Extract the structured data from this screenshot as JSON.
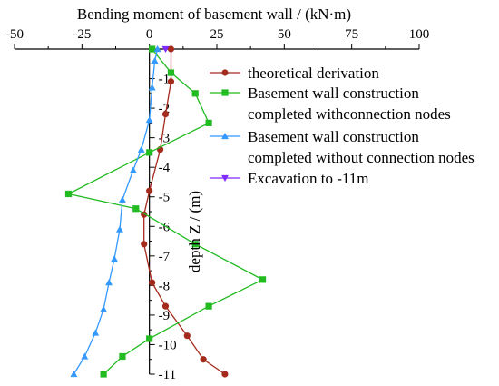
{
  "chart_data": {
    "type": "line",
    "title": "",
    "xlabel": "Bending moment of basement wall / (kN·m)",
    "ylabel": "depth Z / (m)",
    "xlim": [
      -50,
      100
    ],
    "ylim": [
      0,
      -11
    ],
    "x_axis_position": "top",
    "y_axis_crosses_at_x": 0,
    "x_ticks": [
      -50,
      -25,
      0,
      25,
      50,
      75,
      100
    ],
    "x_tick_labels": [
      "-50",
      "-25",
      "0",
      "25",
      "50",
      "75",
      "100"
    ],
    "y_ticks": [
      -1,
      -2,
      -3,
      -4,
      -5,
      -6,
      -7,
      -8,
      -9,
      -10,
      -11
    ],
    "y_tick_labels": [
      "-1",
      "-2",
      "-3",
      "-4",
      "-5",
      "-6",
      "-7",
      "-8",
      "-9",
      "-10",
      "-11"
    ],
    "grid": false,
    "legend_position": "top-right",
    "series": [
      {
        "name": "theoretical derivation",
        "color": "#a52a1e",
        "marker": "circle",
        "points": [
          [
            8,
            0
          ],
          [
            8,
            -1.1
          ],
          [
            6,
            -2.2
          ],
          [
            4,
            -3.4
          ],
          [
            0,
            -4.8
          ],
          [
            -2,
            -5.6
          ],
          [
            -2,
            -6.6
          ],
          [
            1,
            -7.9
          ],
          [
            6,
            -8.7
          ],
          [
            14,
            -9.7
          ],
          [
            20,
            -10.5
          ],
          [
            28,
            -11
          ]
        ]
      },
      {
        "name": "Basement wall construction completed withconnection nodes",
        "color": "#22bb22",
        "marker": "square",
        "points": [
          [
            1,
            0
          ],
          [
            8,
            -0.8
          ],
          [
            17,
            -1.5
          ],
          [
            22,
            -2.5
          ],
          [
            0,
            -3.5
          ],
          [
            -30,
            -4.9
          ],
          [
            -5,
            -5.4
          ],
          [
            17,
            -6.6
          ],
          [
            42,
            -7.8
          ],
          [
            22,
            -8.7
          ],
          [
            0,
            -9.8
          ],
          [
            -10,
            -10.4
          ],
          [
            -17,
            -11
          ]
        ]
      },
      {
        "name": "Basement wall construction completed without connection nodes",
        "color": "#3399ff",
        "marker": "triangle-up",
        "points": [
          [
            3,
            0
          ],
          [
            2,
            -0.4
          ],
          [
            1,
            -1.3
          ],
          [
            0,
            -2.4
          ],
          [
            -3,
            -3.4
          ],
          [
            -6,
            -4.1
          ],
          [
            -10,
            -5.1
          ],
          [
            -11,
            -6.1
          ],
          [
            -13,
            -7.1
          ],
          [
            -15,
            -7.9
          ],
          [
            -17,
            -8.8
          ],
          [
            -20,
            -9.6
          ],
          [
            -24,
            -10.4
          ],
          [
            -28,
            -11
          ]
        ]
      },
      {
        "name": "Excavation to -11m",
        "color": "#7f2aff",
        "marker": "triangle-down",
        "points": [
          [
            6,
            0
          ]
        ]
      }
    ]
  }
}
